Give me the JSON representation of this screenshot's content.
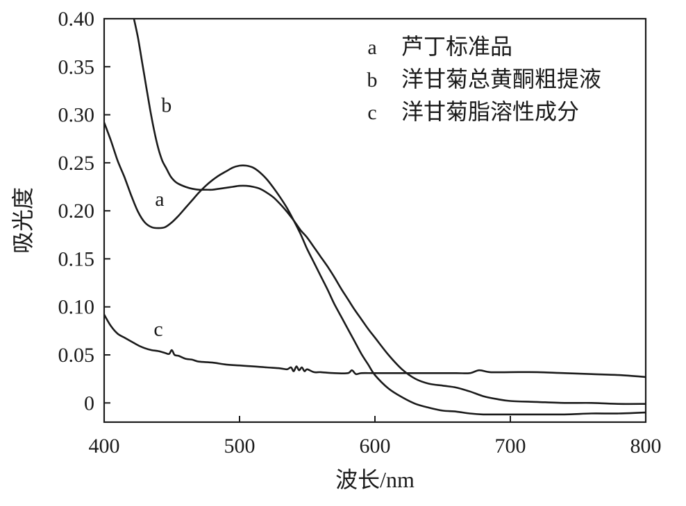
{
  "chart_data": {
    "type": "line",
    "title": "",
    "xlabel": "波长/nm",
    "ylabel": "吸光度",
    "xlim": [
      400,
      800
    ],
    "ylim": [
      -0.02,
      0.4
    ],
    "xticks": [
      400,
      500,
      600,
      700,
      800
    ],
    "xtick_labels": [
      "400",
      "500",
      "600",
      "700",
      "800"
    ],
    "yticks": [
      0,
      0.05,
      0.1,
      0.15,
      0.2,
      0.25,
      0.3,
      0.35,
      0.4
    ],
    "ytick_labels": [
      "0",
      "0.05",
      "0.10",
      "0.15",
      "0.20",
      "0.25",
      "0.30",
      "0.35",
      "0.40"
    ],
    "grid": false,
    "legend_position": "top-right",
    "legend": [
      {
        "key": "a",
        "text": "芦丁标准品"
      },
      {
        "key": "b",
        "text": "洋甘菊总黄酮粗提液"
      },
      {
        "key": "c",
        "text": "洋甘菊脂溶性成分"
      }
    ],
    "series": [
      {
        "name": "a",
        "curve_label": "a",
        "label_at": [
          441,
          0.205
        ],
        "x": [
          400,
          405,
          410,
          415,
          420,
          425,
          430,
          435,
          440,
          445,
          450,
          455,
          460,
          465,
          470,
          475,
          480,
          485,
          490,
          495,
          500,
          505,
          510,
          515,
          520,
          525,
          530,
          535,
          540,
          545,
          550,
          555,
          560,
          565,
          570,
          575,
          580,
          585,
          590,
          595,
          600,
          610,
          620,
          630,
          640,
          650,
          660,
          670,
          680,
          690,
          700,
          720,
          740,
          760,
          780,
          800
        ],
        "y": [
          0.292,
          0.273,
          0.252,
          0.235,
          0.216,
          0.199,
          0.188,
          0.183,
          0.182,
          0.183,
          0.188,
          0.195,
          0.203,
          0.211,
          0.219,
          0.226,
          0.232,
          0.237,
          0.241,
          0.245,
          0.247,
          0.247,
          0.245,
          0.24,
          0.233,
          0.224,
          0.214,
          0.203,
          0.19,
          0.176,
          0.16,
          0.146,
          0.132,
          0.118,
          0.103,
          0.09,
          0.077,
          0.064,
          0.051,
          0.04,
          0.029,
          0.015,
          0.006,
          -0.001,
          -0.005,
          -0.008,
          -0.009,
          -0.011,
          -0.012,
          -0.012,
          -0.012,
          -0.012,
          -0.012,
          -0.011,
          -0.011,
          -0.01
        ]
      },
      {
        "name": "b",
        "curve_label": "b",
        "label_at": [
          446,
          0.303
        ],
        "x": [
          422,
          425,
          428,
          431,
          434,
          437,
          440,
          443,
          446,
          449,
          452,
          455,
          460,
          465,
          470,
          475,
          480,
          485,
          490,
          495,
          500,
          505,
          510,
          515,
          520,
          525,
          530,
          535,
          540,
          545,
          550,
          555,
          560,
          565,
          570,
          575,
          580,
          585,
          590,
          595,
          600,
          610,
          620,
          630,
          640,
          650,
          660,
          670,
          680,
          690,
          700,
          720,
          740,
          760,
          780,
          800
        ],
        "y": [
          0.4,
          0.38,
          0.355,
          0.33,
          0.305,
          0.283,
          0.265,
          0.252,
          0.244,
          0.236,
          0.231,
          0.228,
          0.225,
          0.223,
          0.222,
          0.222,
          0.222,
          0.223,
          0.224,
          0.225,
          0.226,
          0.226,
          0.225,
          0.223,
          0.219,
          0.214,
          0.207,
          0.199,
          0.19,
          0.18,
          0.172,
          0.162,
          0.152,
          0.142,
          0.131,
          0.119,
          0.108,
          0.097,
          0.087,
          0.077,
          0.068,
          0.05,
          0.035,
          0.025,
          0.02,
          0.018,
          0.016,
          0.012,
          0.007,
          0.004,
          0.002,
          0.001,
          0.0,
          0.0,
          -0.001,
          -0.001
        ]
      },
      {
        "name": "c",
        "curve_label": "c",
        "label_at": [
          440,
          0.07
        ],
        "x": [
          400,
          405,
          410,
          415,
          420,
          425,
          430,
          435,
          440,
          445,
          448,
          450,
          452,
          455,
          460,
          465,
          470,
          480,
          490,
          500,
          510,
          520,
          530,
          535,
          538,
          540,
          542,
          544,
          546,
          548,
          550,
          555,
          560,
          570,
          580,
          583,
          586,
          590,
          600,
          620,
          640,
          660,
          670,
          677,
          685,
          700,
          720,
          740,
          760,
          780,
          800
        ],
        "y": [
          0.092,
          0.08,
          0.072,
          0.068,
          0.064,
          0.06,
          0.057,
          0.055,
          0.054,
          0.052,
          0.051,
          0.055,
          0.05,
          0.049,
          0.046,
          0.045,
          0.043,
          0.042,
          0.04,
          0.039,
          0.038,
          0.037,
          0.036,
          0.035,
          0.037,
          0.033,
          0.038,
          0.034,
          0.037,
          0.033,
          0.035,
          0.032,
          0.032,
          0.031,
          0.031,
          0.034,
          0.03,
          0.031,
          0.031,
          0.031,
          0.031,
          0.031,
          0.031,
          0.034,
          0.032,
          0.032,
          0.032,
          0.031,
          0.03,
          0.029,
          0.027
        ]
      }
    ]
  }
}
